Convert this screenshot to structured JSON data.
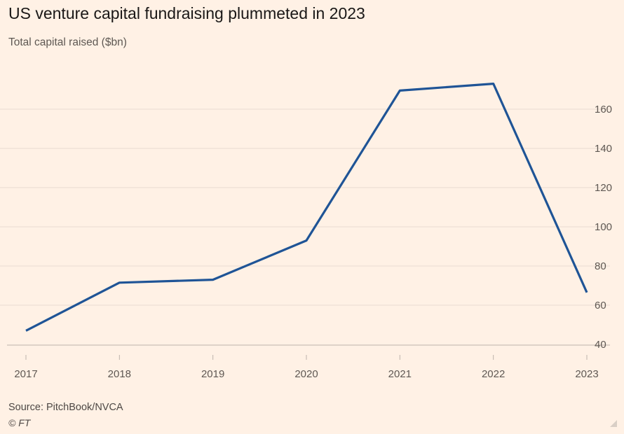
{
  "header": {
    "title": "US venture capital fundraising plummeted in 2023",
    "subtitle": "Total capital raised ($bn)"
  },
  "footer": {
    "source": "Source: PitchBook/NVCA",
    "credit": "© FT"
  },
  "colors": {
    "background": "#fff1e5",
    "line": "#1f5496",
    "grid": "#e8dcd1",
    "axis": "#bdb3aa"
  },
  "chart_data": {
    "type": "line",
    "title": "US venture capital fundraising plummeted in 2023",
    "subtitle": "Total capital raised ($bn)",
    "xlabel": "",
    "ylabel": "",
    "x": [
      "2017",
      "2018",
      "2019",
      "2020",
      "2021",
      "2022",
      "2023"
    ],
    "series": [
      {
        "name": "Total capital raised ($bn)",
        "values": [
          47,
          71.5,
          73,
          93,
          169.5,
          173,
          66.5
        ]
      }
    ],
    "ylim": [
      35,
      180
    ],
    "yticks": [
      40,
      60,
      80,
      100,
      120,
      140,
      160
    ],
    "ytick_labels": [
      "40",
      "60",
      "80",
      "100",
      "120",
      "140",
      "160"
    ],
    "y_axis_side": "right",
    "grid": true,
    "legend": "none"
  }
}
